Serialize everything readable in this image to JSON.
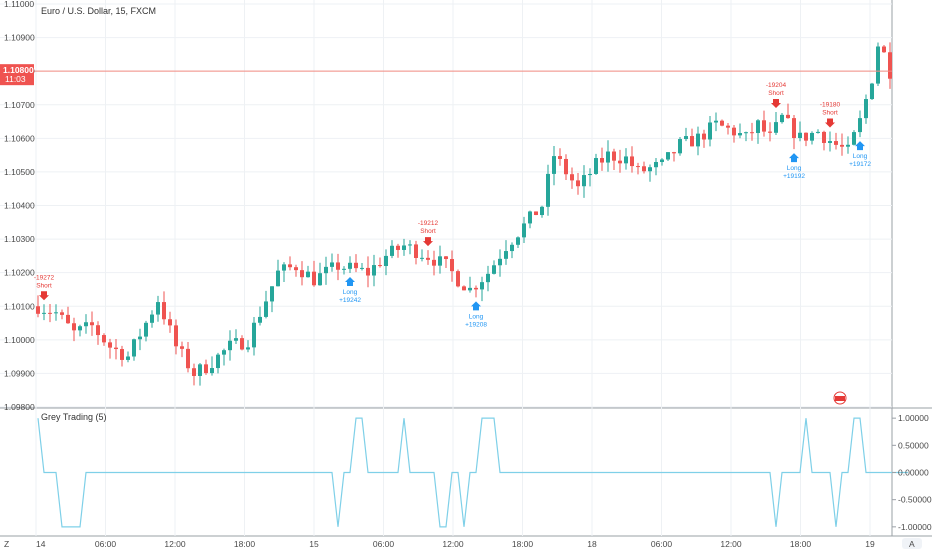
{
  "chart_data": [
    {
      "type": "candlestick",
      "title": "Euro / U.S. Dollar, 15, FXCM",
      "xlabel": "",
      "ylabel": "",
      "ylim": [
        1.098,
        1.11
      ],
      "y_ticks": [
        "1.09800",
        "1.09900",
        "1.10000",
        "1.10100",
        "1.10200",
        "1.10300",
        "1.10400",
        "1.10500",
        "1.10600",
        "1.10700",
        "1.10800",
        "1.10900",
        "1.11000"
      ],
      "x_tick_labels": [
        "14",
        "06:00",
        "12:00",
        "18:00",
        "15",
        "06:00",
        "12:00",
        "18:00",
        "18",
        "06:00",
        "12:00",
        "18:00",
        "19"
      ],
      "grid": true,
      "last_price": {
        "value": 1.108,
        "label": "1.10800",
        "countdown": "11:03"
      },
      "path_anchors": [
        [
          0,
          1.101
        ],
        [
          3,
          1.1008
        ],
        [
          6,
          1.1002
        ],
        [
          9,
          1.1004
        ],
        [
          12,
          1.0998
        ],
        [
          15,
          1.0995
        ],
        [
          18,
          1.1005
        ],
        [
          20,
          1.1012
        ],
        [
          23,
          1.0998
        ],
        [
          26,
          1.099
        ],
        [
          28,
          1.0992
        ],
        [
          32,
          1.0998
        ],
        [
          35,
          1.1
        ],
        [
          38,
          1.1012
        ],
        [
          40,
          1.102
        ],
        [
          43,
          1.1022
        ],
        [
          46,
          1.1018
        ],
        [
          50,
          1.1022
        ],
        [
          55,
          1.102
        ],
        [
          58,
          1.1025
        ],
        [
          61,
          1.1028
        ],
        [
          65,
          1.1025
        ],
        [
          68,
          1.1022
        ],
        [
          70,
          1.1018
        ],
        [
          72,
          1.1015
        ],
        [
          75,
          1.102
        ],
        [
          78,
          1.1028
        ],
        [
          80,
          1.1032
        ],
        [
          84,
          1.104
        ],
        [
          86,
          1.1055
        ],
        [
          88,
          1.105
        ],
        [
          90,
          1.1045
        ],
        [
          93,
          1.1052
        ],
        [
          95,
          1.1055
        ],
        [
          98,
          1.1054
        ],
        [
          100,
          1.105
        ],
        [
          104,
          1.1052
        ],
        [
          107,
          1.1058
        ],
        [
          110,
          1.106
        ],
        [
          113,
          1.1064
        ],
        [
          116,
          1.1062
        ],
        [
          118,
          1.106
        ],
        [
          120,
          1.1064
        ],
        [
          122,
          1.106
        ],
        [
          124,
          1.1066
        ],
        [
          127,
          1.106
        ],
        [
          130,
          1.1062
        ],
        [
          133,
          1.1058
        ],
        [
          135,
          1.1056
        ],
        [
          137,
          1.1065
        ],
        [
          139,
          1.1078
        ],
        [
          140,
          1.1088
        ],
        [
          141,
          1.1085
        ],
        [
          142,
          1.108
        ]
      ],
      "signals": [
        {
          "kind": "short",
          "label": "Short",
          "value": "-19272",
          "bar": 1
        },
        {
          "kind": "long",
          "label": "Long",
          "value": "+19242",
          "bar": 52
        },
        {
          "kind": "short",
          "label": "Short",
          "value": "-19212",
          "bar": 65
        },
        {
          "kind": "long",
          "label": "Long",
          "value": "+19208",
          "bar": 73
        },
        {
          "kind": "short",
          "label": "Short",
          "value": "-19204",
          "bar": 123
        },
        {
          "kind": "long",
          "label": "Long",
          "value": "+19192",
          "bar": 126
        },
        {
          "kind": "short",
          "label": "Short",
          "value": "-19180",
          "bar": 132
        },
        {
          "kind": "long",
          "label": "Long",
          "value": "+19172",
          "bar": 137
        }
      ],
      "colors": {
        "up": "#26a69a",
        "down": "#ef5350",
        "long": "#2196f3",
        "short": "#e53935",
        "price_line": "#f28b82",
        "grid": "#eef1f4"
      }
    },
    {
      "type": "line",
      "title": "Grey Trading (5)",
      "ylim": [
        -1.15,
        1.15
      ],
      "y_ticks": [
        "1.00000",
        "0.50000",
        "0.00000",
        "-0.50000",
        "-1.00000"
      ],
      "series": [
        {
          "values": [
            [
              0,
              1
            ],
            [
              1,
              0
            ],
            [
              3,
              0
            ],
            [
              4,
              -1
            ],
            [
              5,
              -1
            ],
            [
              6,
              -1
            ],
            [
              7,
              -1
            ],
            [
              8,
              0
            ],
            [
              49,
              0
            ],
            [
              50,
              -1
            ],
            [
              51,
              0
            ],
            [
              52,
              0
            ],
            [
              53,
              1
            ],
            [
              54,
              1
            ],
            [
              55,
              0
            ],
            [
              60,
              0
            ],
            [
              61,
              1
            ],
            [
              62,
              0
            ],
            [
              66,
              0
            ],
            [
              67,
              -1
            ],
            [
              68,
              -1
            ],
            [
              69,
              0
            ],
            [
              70,
              0
            ],
            [
              71,
              -1
            ],
            [
              72,
              0
            ],
            [
              73,
              0
            ],
            [
              74,
              1
            ],
            [
              75,
              1
            ],
            [
              76,
              1
            ],
            [
              77,
              0
            ],
            [
              122,
              0
            ],
            [
              123,
              -1
            ],
            [
              124,
              0
            ],
            [
              127,
              0
            ],
            [
              128,
              1
            ],
            [
              129,
              0
            ],
            [
              132,
              0
            ],
            [
              133,
              -1
            ],
            [
              134,
              0
            ],
            [
              135,
              0
            ],
            [
              136,
              1
            ],
            [
              137,
              1
            ],
            [
              138,
              0
            ],
            [
              145,
              0
            ]
          ]
        }
      ],
      "colors": {
        "line": "#7fd0e8"
      }
    }
  ],
  "controls": {
    "left_button": "Z",
    "right_button": "A"
  }
}
